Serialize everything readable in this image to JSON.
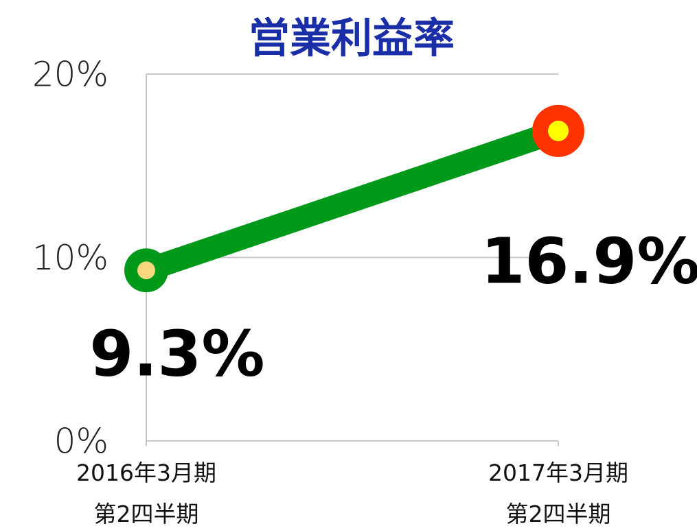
{
  "chart_data": {
    "type": "line",
    "title": "営業利益率",
    "categories": [
      "2016年3月期\n第2四半期",
      "2017年3月期\n第2四半期"
    ],
    "series": [
      {
        "name": "営業利益率",
        "color": "#00991a",
        "values": [
          9.3,
          16.9
        ],
        "value_labels": [
          "9.3%",
          "16.9%"
        ],
        "marker_colors": [
          "#f9d77e",
          "#ffff00"
        ],
        "marker_edge_colors": [
          "#00991a",
          "#ff3300"
        ]
      }
    ],
    "ylim": [
      0,
      20
    ],
    "yticks": [
      {
        "value": 0,
        "label": "0%"
      },
      {
        "value": 10,
        "label": "10%"
      },
      {
        "value": 20,
        "label": "20%"
      }
    ],
    "grid": true
  }
}
